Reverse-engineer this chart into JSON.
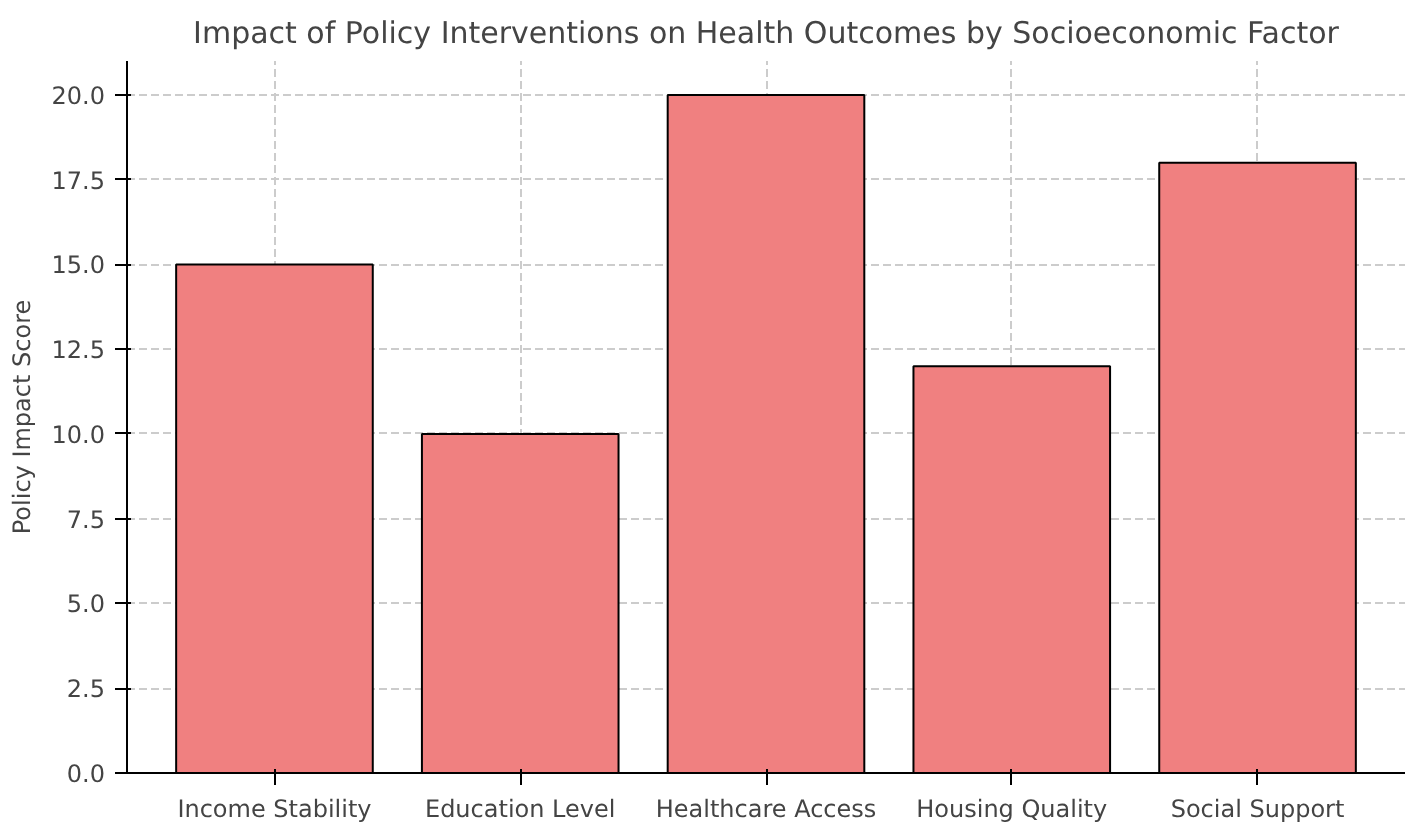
{
  "chart_data": {
    "type": "bar",
    "title": "Impact of Policy Interventions on Health Outcomes by Socioeconomic Factor",
    "ylabel": "Policy Impact Score",
    "categories": [
      "Income Stability",
      "Education Level",
      "Healthcare Access",
      "Housing Quality",
      "Social Support"
    ],
    "values": [
      15,
      10,
      20,
      12,
      18
    ],
    "color": "#f08080",
    "ylim": [
      0,
      21
    ],
    "yticks": [
      {
        "value": 0,
        "label": "0.0"
      },
      {
        "value": 2.5,
        "label": "2.5"
      },
      {
        "value": 5,
        "label": "5.0"
      },
      {
        "value": 7.5,
        "label": "7.5"
      },
      {
        "value": 10,
        "label": "10.0"
      },
      {
        "value": 12.5,
        "label": "12.5"
      },
      {
        "value": 15,
        "label": "15.0"
      },
      {
        "value": 17.5,
        "label": "17.5"
      },
      {
        "value": 20,
        "label": "20.0"
      }
    ],
    "grid": true
  }
}
